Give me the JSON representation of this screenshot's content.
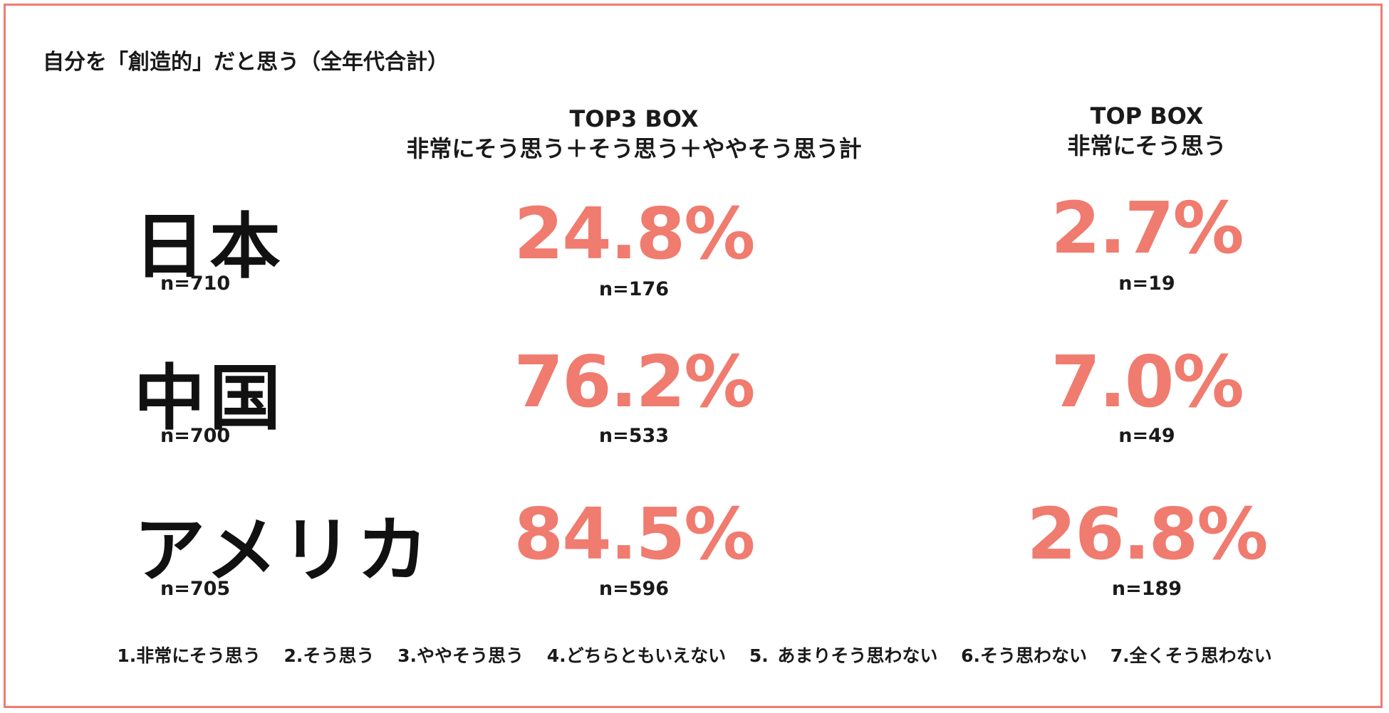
{
  "title": "自分を「創造的」だと思う（全年代合計）",
  "colors": {
    "accent": "#F07B6F",
    "text": "#1a1a1a"
  },
  "columns": {
    "top3": {
      "line1": "TOP3 BOX",
      "line2": "非常にそう思う＋そう思う＋ややそう思う計"
    },
    "top1": {
      "line1": "TOP BOX",
      "line2": "非常にそう思う"
    }
  },
  "rows": [
    {
      "country": "日本",
      "n": "n=710",
      "top3": "24.8%",
      "top3_n": "n=176",
      "top1": "2.7%",
      "top1_n": "n=19"
    },
    {
      "country": "中国",
      "n": "n=700",
      "top3": "76.2%",
      "top3_n": "n=533",
      "top1": "7.0%",
      "top1_n": "n=49"
    },
    {
      "country": "アメリカ",
      "n": "n=705",
      "top3": "84.5%",
      "top3_n": "n=596",
      "top1": "26.8%",
      "top1_n": "n=189"
    }
  ],
  "scale": [
    "1.非常にそう思う",
    "2.そう思う",
    "3.ややそう思う",
    "4.どちらともいえない",
    "5. あまりそう思わない",
    "6.そう思わない",
    "7.全くそう思わない"
  ],
  "chart_data": {
    "type": "table",
    "title": "自分を「創造的」だと思う（全年代合計）",
    "columns": [
      "TOP3 BOX",
      "TOP BOX"
    ],
    "rows": [
      {
        "country": "日本",
        "sample": 710,
        "top3_pct": 24.8,
        "top3_n": 176,
        "top_pct": 2.7,
        "top_n": 19
      },
      {
        "country": "中国",
        "sample": 700,
        "top3_pct": 76.2,
        "top3_n": 533,
        "top_pct": 7.0,
        "top_n": 49
      },
      {
        "country": "アメリカ",
        "sample": 705,
        "top3_pct": 84.5,
        "top3_n": 596,
        "top_pct": 26.8,
        "top_n": 189
      }
    ]
  }
}
